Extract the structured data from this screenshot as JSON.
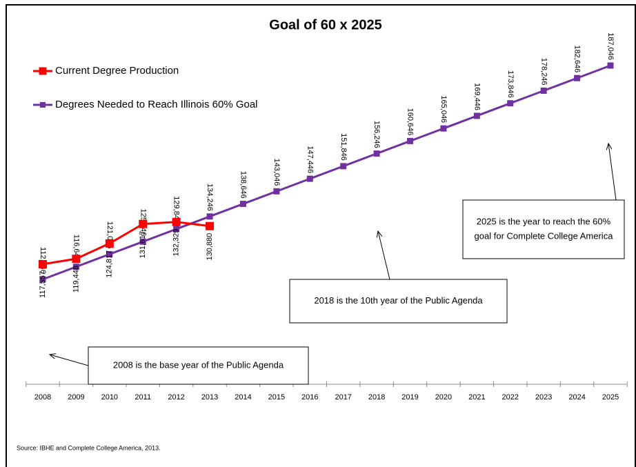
{
  "chart_data": {
    "type": "line",
    "title": "Goal of 60 x 2025",
    "categories": [
      "2008",
      "2009",
      "2010",
      "2011",
      "2012",
      "2013",
      "2014",
      "2015",
      "2016",
      "2017",
      "2018",
      "2019",
      "2020",
      "2021",
      "2022",
      "2023",
      "2024",
      "2025"
    ],
    "series": [
      {
        "name": "Current Degree Production",
        "color": "#ff0000",
        "values": [
          117557,
          119448,
          124817,
          131617,
          132329,
          130880,
          null,
          null,
          null,
          null,
          null,
          null,
          null,
          null,
          null,
          null,
          null,
          null
        ],
        "value_labels": [
          "117,557",
          "119,448",
          "124,817",
          "131,617",
          "132,329",
          "130,880",
          null,
          null,
          null,
          null,
          null,
          null,
          null,
          null,
          null,
          null,
          null,
          null
        ]
      },
      {
        "name": "Degrees Needed to Reach Illinois 60% Goal",
        "color": "#7030a0",
        "values": [
          112246,
          116646,
          121046,
          125446,
          129846,
          134246,
          138646,
          143046,
          147446,
          151846,
          156246,
          160646,
          165046,
          169446,
          173846,
          178246,
          182646,
          187046
        ],
        "value_labels": [
          "112,246",
          "116,646",
          "121,046",
          "125,446",
          "129,846",
          "134,246",
          "138,646",
          "143,046",
          "147,446",
          "151,846",
          "156,246",
          "160,646",
          "165,046",
          "169,446",
          "173,846",
          "178,246",
          "182,646",
          "187,046"
        ]
      }
    ],
    "annotations": [
      {
        "lines": [
          "2008 is the base year of the Public Agenda"
        ]
      },
      {
        "lines": [
          "2018 is the 10th year of the Public Agenda"
        ]
      },
      {
        "lines": [
          "2025 is the year to reach the 60%",
          "goal for Complete College America"
        ]
      }
    ],
    "source": "Source:  IBHE and Complete College America, 2013."
  }
}
